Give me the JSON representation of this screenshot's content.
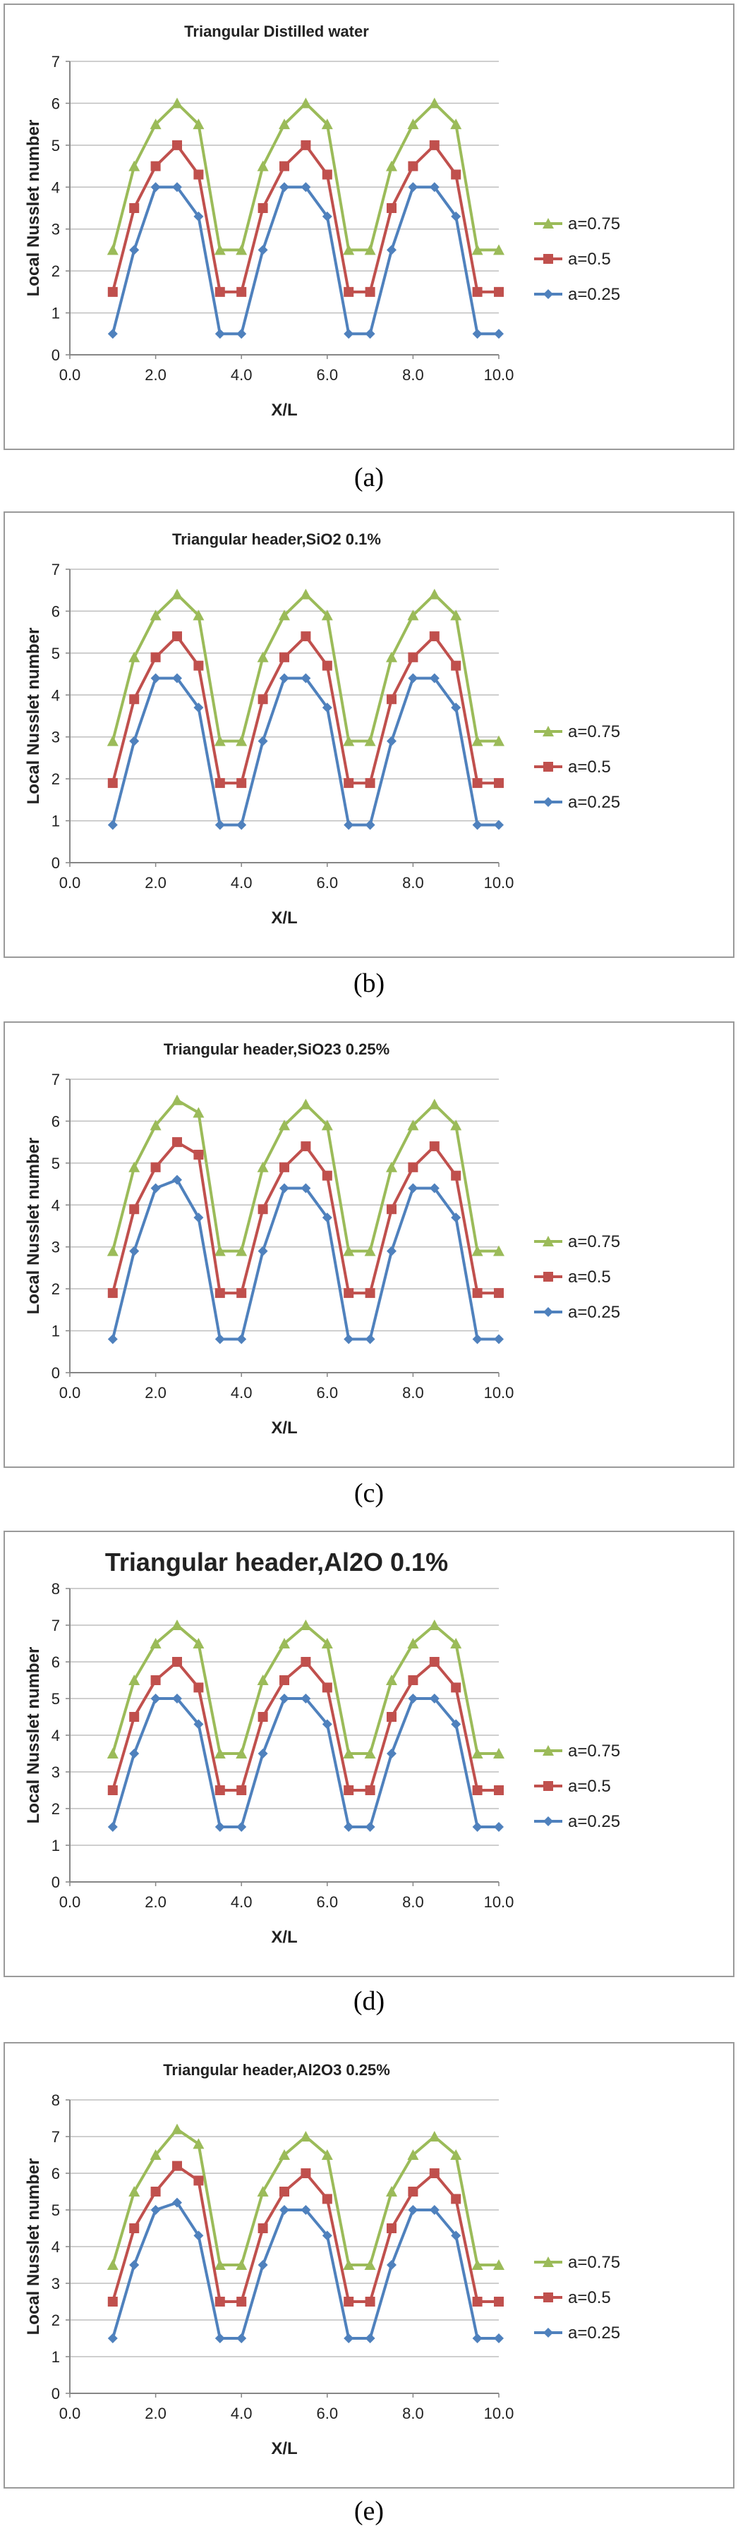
{
  "captions": [
    "(a)",
    "(b)",
    "(c)",
    "(d)",
    "(e)"
  ],
  "colors": {
    "a075": "#9bbb59",
    "a05": "#c0504d",
    "a025": "#4f81bd",
    "grid": "#bfbfbf",
    "axis": "#868686"
  },
  "chart_data": [
    {
      "type": "line",
      "title": "Triangular Distilled water",
      "xlabel": "X/L",
      "ylabel": "Local Nusslet number",
      "xlim": [
        0,
        10
      ],
      "ylim": [
        0,
        7
      ],
      "x_ticks": [
        "0.0",
        "2.0",
        "4.0",
        "6.0",
        "8.0",
        "10.0"
      ],
      "y_ticks": [
        "0",
        "1",
        "2",
        "3",
        "4",
        "5",
        "6",
        "7"
      ],
      "grid": "horizontal",
      "legend_position": "right",
      "x": [
        1,
        1.5,
        2,
        2.5,
        3,
        3.5,
        4,
        4.5,
        5,
        5.5,
        6,
        6.5,
        7,
        7.5,
        8,
        8.5,
        9,
        9.5,
        10
      ],
      "series": [
        {
          "name": "a=0.75",
          "marker": "triangle",
          "values": [
            2.5,
            4.5,
            5.5,
            6.0,
            5.5,
            2.5,
            2.5,
            4.5,
            5.5,
            6.0,
            5.5,
            2.5,
            2.5,
            4.5,
            5.5,
            6.0,
            5.5,
            2.5,
            2.5
          ]
        },
        {
          "name": "a=0.5",
          "marker": "square",
          "values": [
            1.5,
            3.5,
            4.5,
            5.0,
            4.3,
            1.5,
            1.5,
            3.5,
            4.5,
            5.0,
            4.3,
            1.5,
            1.5,
            3.5,
            4.5,
            5.0,
            4.3,
            1.5,
            1.5
          ]
        },
        {
          "name": "a=0.25",
          "marker": "diamond",
          "values": [
            0.5,
            2.5,
            4.0,
            4.0,
            3.3,
            0.5,
            0.5,
            2.5,
            4.0,
            4.0,
            3.3,
            0.5,
            0.5,
            2.5,
            4.0,
            4.0,
            3.3,
            0.5,
            0.5
          ]
        }
      ]
    },
    {
      "type": "line",
      "title": "Triangular header,SiO2 0.1%",
      "xlabel": "X/L",
      "ylabel": "Local Nusslet number",
      "xlim": [
        0,
        10
      ],
      "ylim": [
        0,
        7
      ],
      "x_ticks": [
        "0.0",
        "2.0",
        "4.0",
        "6.0",
        "8.0",
        "10.0"
      ],
      "y_ticks": [
        "0",
        "1",
        "2",
        "3",
        "4",
        "5",
        "6",
        "7"
      ],
      "grid": "horizontal",
      "legend_position": "right",
      "x": [
        1,
        1.5,
        2,
        2.5,
        3,
        3.5,
        4,
        4.5,
        5,
        5.5,
        6,
        6.5,
        7,
        7.5,
        8,
        8.5,
        9,
        9.5,
        10
      ],
      "series": [
        {
          "name": "a=0.75",
          "marker": "triangle",
          "values": [
            2.9,
            4.9,
            5.9,
            6.4,
            5.9,
            2.9,
            2.9,
            4.9,
            5.9,
            6.4,
            5.9,
            2.9,
            2.9,
            4.9,
            5.9,
            6.4,
            5.9,
            2.9,
            2.9
          ]
        },
        {
          "name": "a=0.5",
          "marker": "square",
          "values": [
            1.9,
            3.9,
            4.9,
            5.4,
            4.7,
            1.9,
            1.9,
            3.9,
            4.9,
            5.4,
            4.7,
            1.9,
            1.9,
            3.9,
            4.9,
            5.4,
            4.7,
            1.9,
            1.9
          ]
        },
        {
          "name": "a=0.25",
          "marker": "diamond",
          "values": [
            0.9,
            2.9,
            4.4,
            4.4,
            3.7,
            0.9,
            0.9,
            2.9,
            4.4,
            4.4,
            3.7,
            0.9,
            0.9,
            2.9,
            4.4,
            4.4,
            3.7,
            0.9,
            0.9
          ]
        }
      ]
    },
    {
      "type": "line",
      "title": "Triangular header,SiO23 0.25%",
      "xlabel": "X/L",
      "ylabel": "Local Nusslet number",
      "xlim": [
        0,
        10
      ],
      "ylim": [
        0,
        7
      ],
      "x_ticks": [
        "0.0",
        "2.0",
        "4.0",
        "6.0",
        "8.0",
        "10.0"
      ],
      "y_ticks": [
        "0",
        "1",
        "2",
        "3",
        "4",
        "5",
        "6",
        "7"
      ],
      "grid": "horizontal",
      "legend_position": "right",
      "x": [
        1,
        1.5,
        2,
        2.5,
        3,
        3.5,
        4,
        4.5,
        5,
        5.5,
        6,
        6.5,
        7,
        7.5,
        8,
        8.5,
        9,
        9.5,
        10
      ],
      "series": [
        {
          "name": "a=0.75",
          "marker": "triangle",
          "values": [
            2.9,
            4.9,
            5.9,
            6.5,
            6.2,
            2.9,
            2.9,
            4.9,
            5.9,
            6.4,
            5.9,
            2.9,
            2.9,
            4.9,
            5.9,
            6.4,
            5.9,
            2.9,
            2.9
          ]
        },
        {
          "name": "a=0.5",
          "marker": "square",
          "values": [
            1.9,
            3.9,
            4.9,
            5.5,
            5.2,
            1.9,
            1.9,
            3.9,
            4.9,
            5.4,
            4.7,
            1.9,
            1.9,
            3.9,
            4.9,
            5.4,
            4.7,
            1.9,
            1.9
          ]
        },
        {
          "name": "a=0.25",
          "marker": "diamond",
          "values": [
            0.8,
            2.9,
            4.4,
            4.6,
            3.7,
            0.8,
            0.8,
            2.9,
            4.4,
            4.4,
            3.7,
            0.8,
            0.8,
            2.9,
            4.4,
            4.4,
            3.7,
            0.8,
            0.8
          ]
        }
      ]
    },
    {
      "type": "line",
      "title": "Triangular header,Al2O 0.1%",
      "xlabel": "X/L",
      "ylabel": "Local Nusslet number",
      "xlim": [
        0,
        10
      ],
      "ylim": [
        0,
        8
      ],
      "x_ticks": [
        "0.0",
        "2.0",
        "4.0",
        "6.0",
        "8.0",
        "10.0"
      ],
      "y_ticks": [
        "0",
        "1",
        "2",
        "3",
        "4",
        "5",
        "6",
        "7",
        "8"
      ],
      "grid": "horizontal",
      "legend_position": "right",
      "x": [
        1,
        1.5,
        2,
        2.5,
        3,
        3.5,
        4,
        4.5,
        5,
        5.5,
        6,
        6.5,
        7,
        7.5,
        8,
        8.5,
        9,
        9.5,
        10
      ],
      "series": [
        {
          "name": "a=0.75",
          "marker": "triangle",
          "values": [
            3.5,
            5.5,
            6.5,
            7.0,
            6.5,
            3.5,
            3.5,
            5.5,
            6.5,
            7.0,
            6.5,
            3.5,
            3.5,
            5.5,
            6.5,
            7.0,
            6.5,
            3.5,
            3.5
          ]
        },
        {
          "name": "a=0.5",
          "marker": "square",
          "values": [
            2.5,
            4.5,
            5.5,
            6.0,
            5.3,
            2.5,
            2.5,
            4.5,
            5.5,
            6.0,
            5.3,
            2.5,
            2.5,
            4.5,
            5.5,
            6.0,
            5.3,
            2.5,
            2.5
          ]
        },
        {
          "name": "a=0.25",
          "marker": "diamond",
          "values": [
            1.5,
            3.5,
            5.0,
            5.0,
            4.3,
            1.5,
            1.5,
            3.5,
            5.0,
            5.0,
            4.3,
            1.5,
            1.5,
            3.5,
            5.0,
            5.0,
            4.3,
            1.5,
            1.5
          ]
        }
      ]
    },
    {
      "type": "line",
      "title": "Triangular header,Al2O3 0.25%",
      "xlabel": "X/L",
      "ylabel": "Local Nusslet number",
      "xlim": [
        0,
        10
      ],
      "ylim": [
        0,
        8
      ],
      "x_ticks": [
        "0.0",
        "2.0",
        "4.0",
        "6.0",
        "8.0",
        "10.0"
      ],
      "y_ticks": [
        "0",
        "1",
        "2",
        "3",
        "4",
        "5",
        "6",
        "7",
        "8"
      ],
      "grid": "horizontal",
      "legend_position": "right",
      "x": [
        1,
        1.5,
        2,
        2.5,
        3,
        3.5,
        4,
        4.5,
        5,
        5.5,
        6,
        6.5,
        7,
        7.5,
        8,
        8.5,
        9,
        9.5,
        10
      ],
      "series": [
        {
          "name": "a=0.75",
          "marker": "triangle",
          "values": [
            3.5,
            5.5,
            6.5,
            7.2,
            6.8,
            3.5,
            3.5,
            5.5,
            6.5,
            7.0,
            6.5,
            3.5,
            3.5,
            5.5,
            6.5,
            7.0,
            6.5,
            3.5,
            3.5
          ]
        },
        {
          "name": "a=0.5",
          "marker": "square",
          "values": [
            2.5,
            4.5,
            5.5,
            6.2,
            5.8,
            2.5,
            2.5,
            4.5,
            5.5,
            6.0,
            5.3,
            2.5,
            2.5,
            4.5,
            5.5,
            6.0,
            5.3,
            2.5,
            2.5
          ]
        },
        {
          "name": "a=0.25",
          "marker": "diamond",
          "values": [
            1.5,
            3.5,
            5.0,
            5.2,
            4.3,
            1.5,
            1.5,
            3.5,
            5.0,
            5.0,
            4.3,
            1.5,
            1.5,
            3.5,
            5.0,
            5.0,
            4.3,
            1.5,
            1.5
          ]
        }
      ]
    }
  ]
}
